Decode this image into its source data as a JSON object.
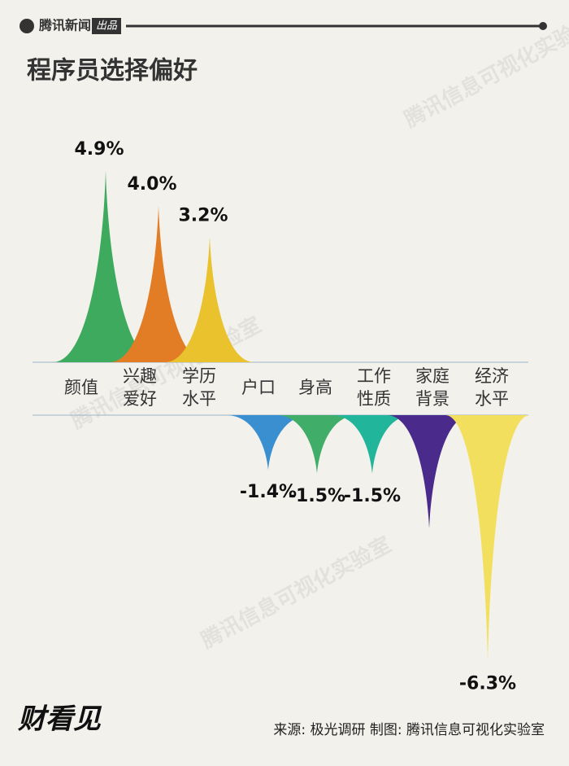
{
  "header": {
    "brand": "腾讯新闻",
    "tag": "出品"
  },
  "chart_data": {
    "type": "spike",
    "title": "程序员选择偏好",
    "categories": [
      "颜值",
      "兴趣爱好",
      "学历水平",
      "户口",
      "身高",
      "工作性质",
      "家庭背景",
      "经济水平"
    ],
    "values": [
      4.9,
      4.0,
      3.2,
      -1.4,
      -1.5,
      -1.5,
      -2.9,
      -6.3
    ],
    "value_labels": [
      "4.9%",
      "4.0%",
      "3.2%",
      "-1.4%",
      "-1.5%",
      "-1.5%",
      null,
      "-6.3%"
    ],
    "colors": [
      "#3daa5e",
      "#e27c25",
      "#e9c22d",
      "#3a8fd0",
      "#40ad68",
      "#21b69b",
      "#4a2b8c",
      "#f3df5e"
    ]
  },
  "watermark": "腾讯信息可视化实验室",
  "footer": {
    "logo": "财看见",
    "source": "来源: 极光调研  制图: 腾讯信息可视化实验室"
  }
}
